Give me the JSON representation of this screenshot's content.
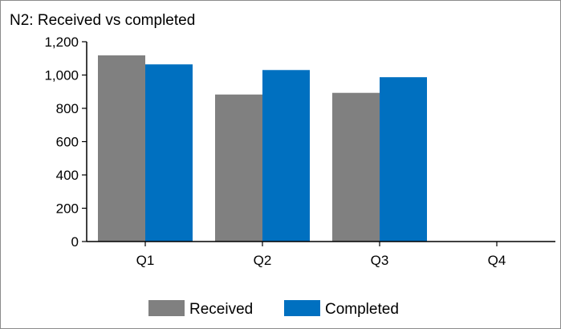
{
  "chart_data": {
    "type": "bar",
    "title": "N2: Received vs completed",
    "xlabel": "",
    "ylabel": "",
    "categories": [
      "Q1",
      "Q2",
      "Q3",
      "Q4"
    ],
    "series": [
      {
        "name": "Received",
        "color": "#808080",
        "values": [
          1118,
          883,
          893,
          null
        ]
      },
      {
        "name": "Completed",
        "color": "#0070c0",
        "values": [
          1064,
          1030,
          987,
          null
        ]
      }
    ],
    "ylim": [
      0,
      1200
    ],
    "yticks": [
      0,
      200,
      400,
      600,
      800,
      1000,
      1200
    ],
    "ytick_labels": [
      "0",
      "200",
      "400",
      "600",
      "800",
      "1,000",
      "1,200"
    ],
    "grid": false,
    "legend": "bottom"
  }
}
